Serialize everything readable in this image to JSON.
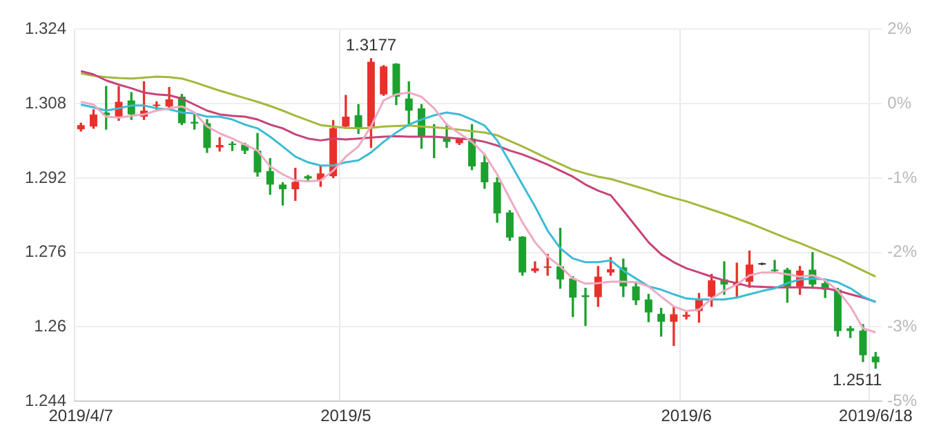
{
  "chart_data": {
    "type": "candlestick",
    "categories": [
      "2019/4/7",
      null,
      null,
      null,
      null,
      null,
      null,
      null,
      null,
      null,
      null,
      null,
      null,
      null,
      null,
      null,
      null,
      null,
      null,
      null,
      null,
      "2019/5",
      null,
      null,
      null,
      null,
      null,
      null,
      null,
      null,
      null,
      null,
      null,
      null,
      null,
      null,
      null,
      null,
      null,
      null,
      null,
      null,
      null,
      null,
      null,
      null,
      null,
      null,
      "2019/6",
      null,
      null,
      null,
      null,
      null,
      null,
      null,
      null,
      null,
      null,
      null,
      null,
      null,
      null,
      "2019/6/18"
    ],
    "ohlc": [
      [
        1.3025,
        1.3038,
        1.3021,
        1.3034
      ],
      [
        1.3031,
        1.3067,
        1.3027,
        1.3057
      ],
      [
        1.3061,
        1.3117,
        1.3025,
        1.3055
      ],
      [
        1.3052,
        1.3117,
        1.3044,
        1.3084
      ],
      [
        1.3087,
        1.3104,
        1.3046,
        1.3057
      ],
      [
        1.3052,
        1.3127,
        1.3046,
        1.3065
      ],
      [
        1.3075,
        1.3084,
        1.3067,
        1.3077
      ],
      [
        1.3074,
        1.3115,
        1.307,
        1.3089
      ],
      [
        1.3095,
        1.31,
        1.3035,
        1.3038
      ],
      [
        1.3041,
        1.3059,
        1.3025,
        1.3037
      ],
      [
        1.3038,
        1.3046,
        1.2975,
        1.2985
      ],
      [
        1.2986,
        1.3007,
        1.2978,
        1.2991
      ],
      [
        1.2993,
        1.2998,
        1.2979,
        1.2991
      ],
      [
        1.2992,
        1.2995,
        1.2973,
        1.2979
      ],
      [
        1.2979,
        1.3016,
        1.2924,
        1.2932
      ],
      [
        1.2935,
        1.2962,
        1.2885,
        1.2906
      ],
      [
        1.2906,
        1.291,
        1.2862,
        1.2896
      ],
      [
        1.2896,
        1.2941,
        1.2872,
        1.2912
      ],
      [
        1.2924,
        1.2926,
        1.2915,
        1.2919
      ],
      [
        1.2917,
        1.2945,
        1.2902,
        1.293
      ],
      [
        1.2924,
        1.3044,
        1.2921,
        1.3027
      ],
      [
        1.3031,
        1.3098,
        1.3027,
        1.3052
      ],
      [
        1.3055,
        1.3078,
        1.3016,
        1.3028
      ],
      [
        1.3031,
        1.3177,
        1.2986,
        1.317
      ],
      [
        1.31,
        1.3162,
        1.3098,
        1.316
      ],
      [
        1.3166,
        1.3166,
        1.3078,
        1.3095
      ],
      [
        1.3091,
        1.3127,
        1.3035,
        1.3065
      ],
      [
        1.307,
        1.3078,
        1.2984,
        1.3009
      ],
      [
        1.3009,
        1.3035,
        1.2964,
        1.3007
      ],
      [
        1.3009,
        1.3035,
        1.2986,
        1.2998
      ],
      [
        1.2995,
        1.3005,
        1.2992,
        1.3003
      ],
      [
        1.3005,
        1.3035,
        1.2938,
        1.2945
      ],
      [
        1.2954,
        1.2971,
        1.2898,
        1.2911
      ],
      [
        1.2911,
        1.2921,
        1.2825,
        1.2844
      ],
      [
        1.2846,
        1.285,
        1.2786,
        1.2792
      ],
      [
        1.2794,
        1.2794,
        1.2711,
        1.2717
      ],
      [
        1.272,
        1.274,
        1.2717,
        1.2726
      ],
      [
        1.2727,
        1.2756,
        1.2711,
        1.273
      ],
      [
        1.273,
        1.2812,
        1.2683,
        1.2702
      ],
      [
        1.2704,
        1.2708,
        1.2622,
        1.2663
      ],
      [
        1.2668,
        1.2683,
        1.2603,
        1.2664
      ],
      [
        1.2664,
        1.273,
        1.2644,
        1.2708
      ],
      [
        1.2717,
        1.2749,
        1.2711,
        1.2724
      ],
      [
        1.2728,
        1.2746,
        1.2665,
        1.2687
      ],
      [
        1.2687,
        1.2697,
        1.2648,
        1.2657
      ],
      [
        1.2659,
        1.267,
        1.2611,
        1.2631
      ],
      [
        1.2628,
        1.264,
        1.258,
        1.2611
      ],
      [
        1.2611,
        1.2644,
        1.256,
        1.2627
      ],
      [
        1.2622,
        1.2635,
        1.2617,
        1.2626
      ],
      [
        1.2634,
        1.2672,
        1.261,
        1.2659
      ],
      [
        1.2665,
        1.2713,
        1.2644,
        1.27
      ],
      [
        1.2702,
        1.274,
        1.267,
        1.2691
      ],
      [
        1.2689,
        1.2737,
        1.2663,
        1.2697
      ],
      [
        1.2697,
        1.2763,
        1.2685,
        1.2734
      ],
      [
        1.2734,
        1.2734,
        1.2734,
        1.2734
      ],
      [
        1.2723,
        1.2743,
        1.2717,
        1.272
      ],
      [
        1.2723,
        1.2726,
        1.2653,
        1.2687
      ],
      [
        1.2687,
        1.273,
        1.267,
        1.2721
      ],
      [
        1.2723,
        1.276,
        1.2687,
        1.2691
      ],
      [
        1.2694,
        1.2702,
        1.2663,
        1.268
      ],
      [
        1.268,
        1.2683,
        1.258,
        1.2591
      ],
      [
        1.2597,
        1.2601,
        1.2577,
        1.2591
      ],
      [
        1.2592,
        1.2605,
        1.2525,
        1.2539
      ],
      [
        1.2536,
        1.2545,
        1.2511,
        1.2524
      ]
    ],
    "colors": [
      "#e8312a",
      "#e8312a",
      "#1ca12e",
      "#e8312a",
      "#1ca12e",
      "#e8312a",
      "#e8312a",
      "#e8312a",
      "#1ca12e",
      "#1ca12e",
      "#1ca12e",
      "#e8312a",
      "#1ca12e",
      "#1ca12e",
      "#1ca12e",
      "#1ca12e",
      "#1ca12e",
      "#e8312a",
      "#1ca12e",
      "#e8312a",
      "#e8312a",
      "#e8312a",
      "#1ca12e",
      "#e8312a",
      "#e8312a",
      "#1ca12e",
      "#1ca12e",
      "#1ca12e",
      "#1ca12e",
      "#1ca12e",
      "#e8312a",
      "#1ca12e",
      "#1ca12e",
      "#1ca12e",
      "#1ca12e",
      "#1ca12e",
      "#e8312a",
      "#e8312a",
      "#1ca12e",
      "#1ca12e",
      "#1ca12e",
      "#e8312a",
      "#e8312a",
      "#1ca12e",
      "#1ca12e",
      "#1ca12e",
      "#1ca12e",
      "#e8312a",
      "#e8312a",
      "#e8312a",
      "#e8312a",
      "#1ca12e",
      "#e8312a",
      "#e8312a",
      "#333333",
      "#1ca12e",
      "#1ca12e",
      "#e8312a",
      "#1ca12e",
      "#1ca12e",
      "#1ca12e",
      "#1ca12e",
      "#1ca12e",
      "#1ca12e"
    ],
    "series": [
      {
        "type": "line",
        "color": "#eeaac4",
        "values": [
          1.3084,
          1.3078,
          1.3052,
          1.305,
          1.3054,
          1.3057,
          1.3065,
          1.307,
          1.3074,
          1.3061,
          1.3031,
          1.3016,
          1.3005,
          1.2992,
          1.2979,
          1.2945,
          1.2928,
          1.2915,
          1.2913,
          1.2915,
          1.2936,
          1.2966,
          1.2988,
          1.3031,
          1.3087,
          1.31,
          1.3104,
          1.3095,
          1.307,
          1.3035,
          1.3016,
          1.2998,
          1.2971,
          1.2928,
          1.2876,
          1.2825,
          1.2782,
          1.2751,
          1.273,
          1.2704,
          1.2693,
          1.2694,
          1.2697,
          1.2697,
          1.2696,
          1.2687,
          1.2665,
          1.2644,
          1.2634,
          1.2637,
          1.2661,
          1.2678,
          1.2691,
          1.2711,
          1.2717,
          1.2717,
          1.2713,
          1.2708,
          1.2711,
          1.27,
          1.2678,
          1.2644,
          1.2597,
          1.2588
        ]
      },
      {
        "type": "line",
        "color": "#3cbcd4",
        "values": [
          1.3078,
          1.3072,
          1.3065,
          1.307,
          1.3076,
          1.3076,
          1.307,
          1.3068,
          1.3061,
          1.3059,
          1.3052,
          1.3052,
          1.3046,
          1.3035,
          1.3027,
          1.3009,
          1.2988,
          1.2966,
          1.2954,
          1.2947,
          1.2947,
          1.2954,
          1.2958,
          1.2975,
          1.2998,
          1.3018,
          1.3035,
          1.3046,
          1.3055,
          1.3061,
          1.3057,
          1.3046,
          1.3033,
          1.3001,
          1.2954,
          1.2906,
          1.2859,
          1.2807,
          1.2769,
          1.2747,
          1.2739,
          1.2739,
          1.2743,
          1.2721,
          1.2704,
          1.2687,
          1.268,
          1.267,
          1.2661,
          1.2659,
          1.2659,
          1.2659,
          1.2663,
          1.267,
          1.2677,
          1.2683,
          1.2694,
          1.2702,
          1.2704,
          1.2702,
          1.2696,
          1.2683,
          1.2665,
          1.2653
        ]
      },
      {
        "type": "line",
        "color": "#c64478",
        "values": [
          1.315,
          1.3143,
          1.313,
          1.3121,
          1.3113,
          1.3104,
          1.31,
          1.3098,
          1.3091,
          1.3078,
          1.3065,
          1.3057,
          1.3054,
          1.3052,
          1.3046,
          1.3035,
          1.3027,
          1.3014,
          1.3005,
          1.3001,
          1.3005,
          1.3003,
          1.3005,
          1.3007,
          1.3009,
          1.301,
          1.3009,
          1.3009,
          1.3009,
          1.3007,
          1.3005,
          1.3003,
          1.2998,
          1.299,
          1.2979,
          1.2971,
          1.296,
          1.2949,
          1.2936,
          1.2923,
          1.2906,
          1.2893,
          1.2883,
          1.285,
          1.2816,
          1.2782,
          1.2756,
          1.2739,
          1.2726,
          1.2717,
          1.2708,
          1.27,
          1.2694,
          1.2687,
          1.2686,
          1.2685,
          1.2685,
          1.2685,
          1.2684,
          1.2683,
          1.2678,
          1.267,
          1.2663,
          1.2654
        ]
      },
      {
        "type": "line",
        "color": "#a4b83c",
        "values": [
          1.3145,
          1.314,
          1.3137,
          1.3135,
          1.3134,
          1.3136,
          1.3138,
          1.3137,
          1.3134,
          1.3126,
          1.3117,
          1.3108,
          1.31,
          1.3092,
          1.3084,
          1.3075,
          1.3065,
          1.3054,
          1.3044,
          1.3034,
          1.3031,
          1.3028,
          1.3027,
          1.3028,
          1.3031,
          1.3032,
          1.3033,
          1.3031,
          1.3029,
          1.3027,
          1.3024,
          1.3021,
          1.3018,
          1.3012,
          1.3,
          1.2988,
          1.2975,
          1.2962,
          1.295,
          1.2938,
          1.293,
          1.2923,
          1.2918,
          1.291,
          1.2902,
          1.2894,
          1.2885,
          1.2877,
          1.287,
          1.2861,
          1.2852,
          1.2843,
          1.2833,
          1.2823,
          1.2812,
          1.2801,
          1.279,
          1.278,
          1.2769,
          1.2758,
          1.2747,
          1.2734,
          1.2721,
          1.2708
        ]
      }
    ],
    "ylim": [
      1.244,
      1.324
    ],
    "yticks": [
      1.244,
      1.26,
      1.276,
      1.292,
      1.308,
      1.324
    ],
    "y2lim": [
      -4.64,
      1.5
    ],
    "y2ticks": [
      {
        "value": -4.64,
        "label": "-5%"
      },
      {
        "value": -3.41,
        "label": "-3%"
      },
      {
        "value": -2.18,
        "label": "-2%"
      },
      {
        "value": -0.96,
        "label": "-1%"
      },
      {
        "value": 0.27,
        "label": "0%"
      },
      {
        "value": 1.5,
        "label": "2%"
      }
    ],
    "annotations": [
      {
        "text": "1.3177",
        "y": 1.3177
      },
      "1.2511"
    ],
    "grid": true,
    "legend": false
  }
}
